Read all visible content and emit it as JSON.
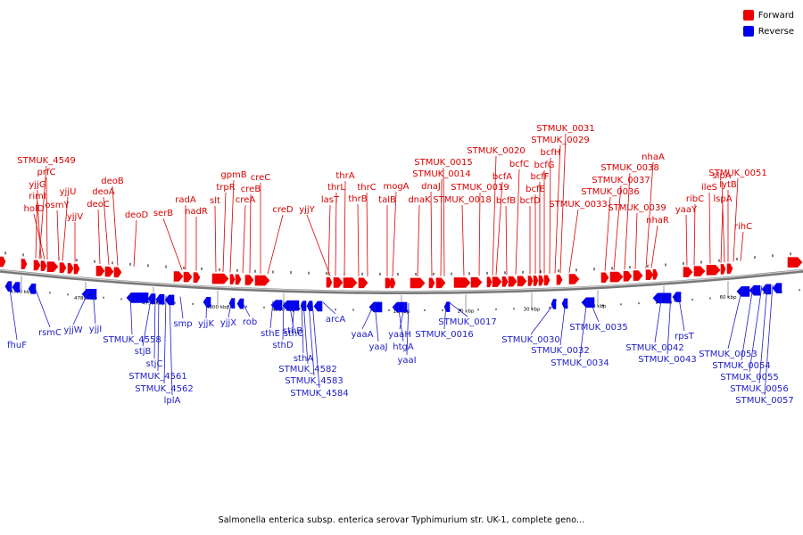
{
  "legend": {
    "forward_label": "Forward",
    "reverse_label": "Reverse",
    "forward_color": "#ee0000",
    "reverse_color": "#0000ee"
  },
  "caption": "Salmonella enterica subsp. enterica serovar Typhimurium str. UK-1, complete geno...",
  "tick_labels": [
    "4770 kbp",
    "4780 kbp",
    "4790 kbp",
    "4800 kbp",
    "4810 kbp",
    "10 kbp",
    "20 kbp",
    "30 kbp",
    "40 kbp",
    "50 kbp",
    "60 kbp"
  ],
  "forward_labels": [
    "STMUK_4549",
    "prfC",
    "yjjG",
    "rimI",
    "holD",
    "yjjU",
    "osmY",
    "yjjV",
    "deoC",
    "deoA",
    "deoB",
    "deoD",
    "serB",
    "radA",
    "nadR",
    "slt",
    "trpR",
    "gpmB",
    "creA",
    "creB",
    "creC",
    "creD",
    "yjjY",
    "lasT",
    "thrL",
    "thrA",
    "thrB",
    "thrC",
    "talB",
    "mogA",
    "dnaK",
    "dnaJ",
    "STMUK_0014",
    "STMUK_0015",
    "STMUK_0018",
    "STMUK_0019",
    "STMUK_0020",
    "bcfA",
    "bcfB",
    "bcfC",
    "bcfD",
    "bcfE",
    "bcfF",
    "bcfG",
    "bcfH",
    "STMUK_0029",
    "STMUK_0031",
    "STMUK_0033",
    "STMUK_0036",
    "STMUK_0037",
    "STMUK_0038",
    "STMUK_0039",
    "nhaA",
    "nhaR",
    "yaaY",
    "ribC",
    "ileS",
    "lspA",
    "slpA",
    "lytB",
    "STMUK_0051",
    "rihC"
  ],
  "reverse_labels": [
    "fhuF",
    "rsmC",
    "yjjW",
    "yjjI",
    "STMUK_4558",
    "stjB",
    "stjC",
    "STMUK_4561",
    "STMUK_4562",
    "lplA",
    "smp",
    "yjjK",
    "yjjX",
    "rob",
    "sthE",
    "sthD",
    "sthC",
    "sthB",
    "sthA",
    "STMUK_4582",
    "STMUK_4583",
    "STMUK_4584",
    "arcA",
    "yaaA",
    "yaaJ",
    "htgA",
    "yaaH",
    "yaaI",
    "STMUK_0016",
    "STMUK_0017",
    "STMUK_0030",
    "STMUK_0032",
    "STMUK_0034",
    "STMUK_0035",
    "STMUK_0042",
    "STMUK_0043",
    "rpsT",
    "STMUK_0053",
    "STMUK_0054",
    "STMUK_0055",
    "STMUK_0056",
    "STMUK_0057"
  ]
}
